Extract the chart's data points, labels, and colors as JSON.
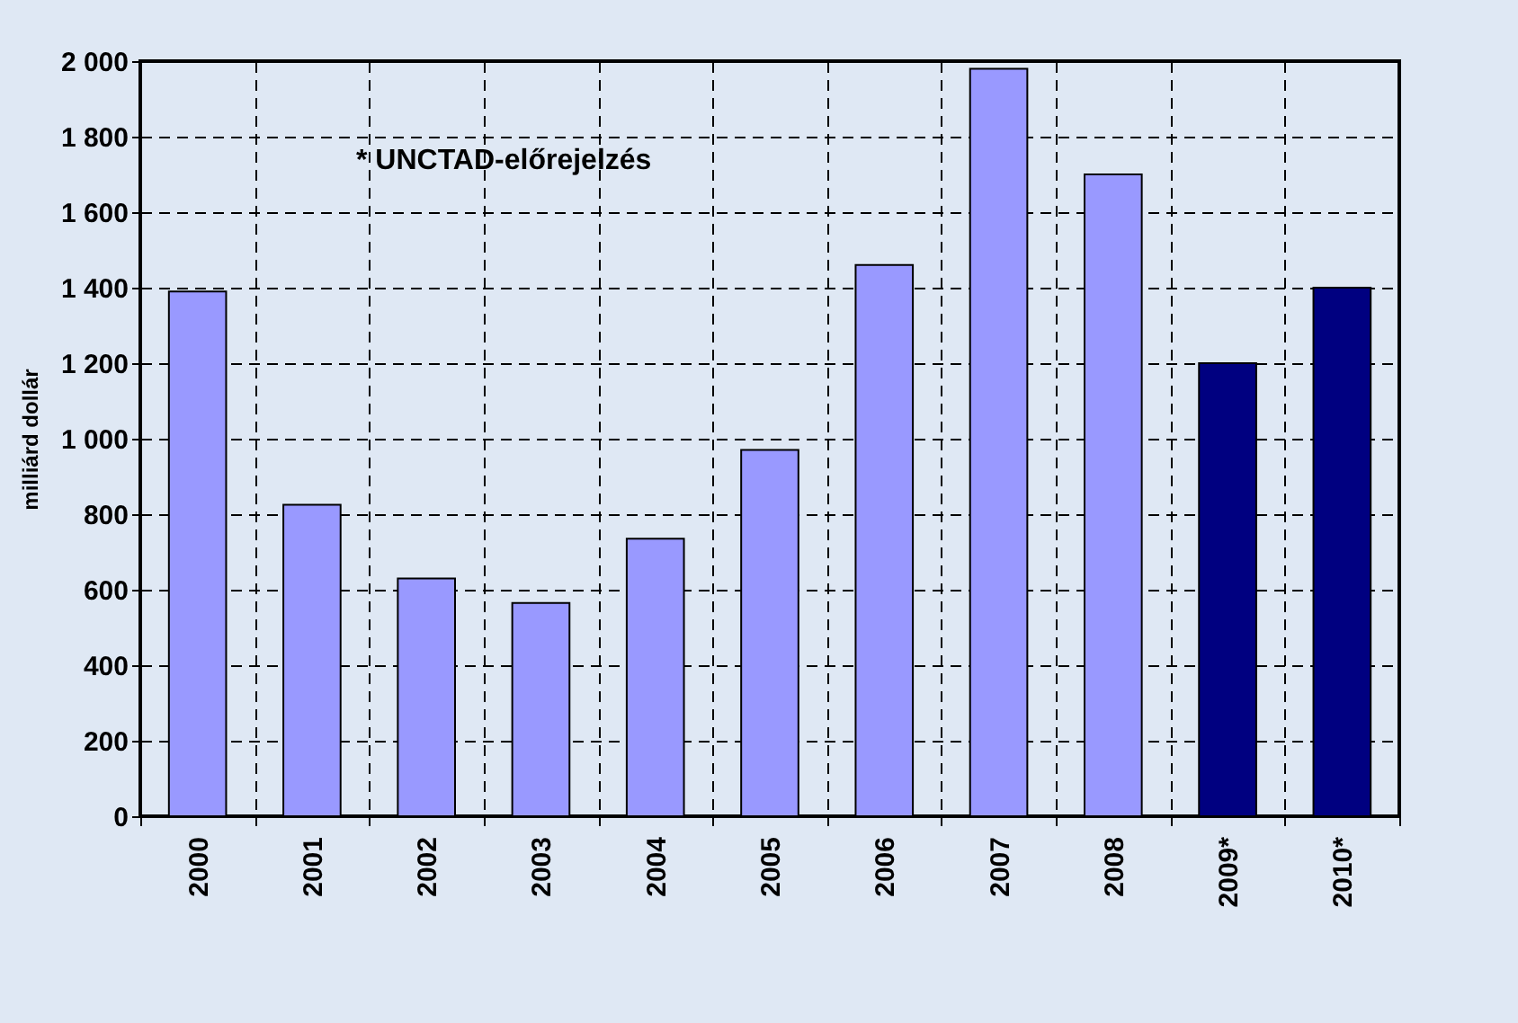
{
  "chart_data": {
    "type": "bar",
    "ylabel": "milliárd dollár",
    "annotations": [
      "* UNCTAD-előrejelzés"
    ],
    "categories": [
      "2000",
      "2001",
      "2002",
      "2003",
      "2004",
      "2005",
      "2006",
      "2007",
      "2008",
      "2009*",
      "2010*"
    ],
    "values": [
      1390,
      825,
      630,
      565,
      735,
      970,
      1460,
      1980,
      1700,
      1200,
      1400
    ],
    "colors": [
      "#9999ff",
      "#9999ff",
      "#9999ff",
      "#9999ff",
      "#9999ff",
      "#9999ff",
      "#9999ff",
      "#9999ff",
      "#9999ff",
      "#000080",
      "#000080"
    ],
    "ylim": [
      0,
      2000
    ],
    "yticks": [
      0,
      200,
      400,
      600,
      800,
      {
        "value": 1000,
        "label": "1 000"
      },
      {
        "value": 1200,
        "label": "1 200"
      },
      {
        "value": 1400,
        "label": "1 400"
      },
      {
        "value": 1600,
        "label": "1 600"
      },
      {
        "value": 1800,
        "label": "1 800"
      },
      {
        "value": 2000,
        "label": "2 000"
      }
    ],
    "grid": true
  }
}
